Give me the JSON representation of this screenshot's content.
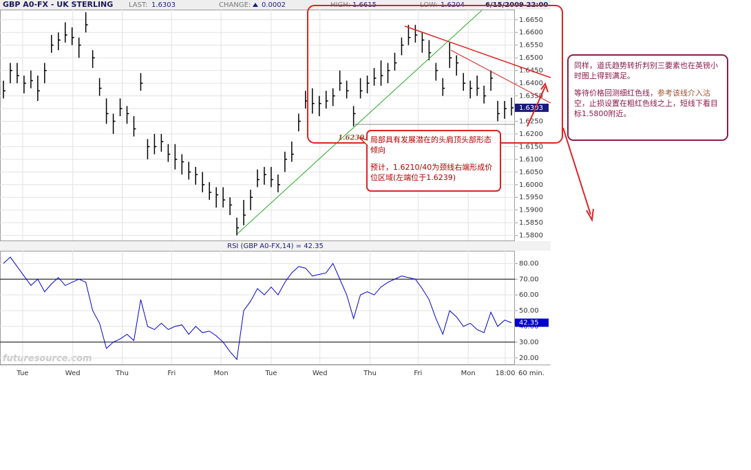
{
  "header": {
    "symbol": "GBP A0-FX - UK STERLING",
    "last_label": "LAST:",
    "last": "1.6303",
    "change_label": "CHANGE:",
    "change": "0.0002",
    "high_label": "HIGH:",
    "high": "1.6615",
    "low_label": "LOW:",
    "low": "1.6204",
    "datetime": "6/15/2009 22:00"
  },
  "chart_data": [
    {
      "type": "hlc",
      "color": "#000000",
      "box_color": "#1a1a7a",
      "grid": true,
      "high": [
        1.641,
        1.648,
        1.648,
        1.643,
        1.645,
        1.643,
        1.648,
        1.659,
        1.66,
        1.664,
        1.662,
        1.658,
        1.668,
        1.653,
        1.642,
        1.634,
        1.628,
        1.634,
        1.631,
        1.627,
        1.644,
        1.618,
        1.62,
        1.62,
        1.616,
        1.616,
        1.612,
        1.609,
        1.607,
        1.605,
        1.601,
        1.599,
        1.599,
        1.595,
        1.587,
        1.594,
        1.598,
        1.606,
        1.607,
        1.607,
        1.604,
        1.613,
        1.617,
        1.628,
        1.637,
        1.638,
        1.635,
        1.637,
        1.638,
        1.645,
        1.641,
        1.631,
        1.642,
        1.643,
        1.646,
        1.649,
        1.648,
        1.652,
        1.658,
        1.663,
        1.663,
        1.66,
        1.657,
        1.648,
        1.642,
        1.656,
        1.651,
        1.644,
        1.641,
        1.643,
        1.639,
        1.645,
        1.633,
        1.633,
        1.6343
      ],
      "low": [
        1.634,
        1.64,
        1.64,
        1.636,
        1.638,
        1.633,
        1.64,
        1.652,
        1.653,
        1.656,
        1.655,
        1.65,
        1.66,
        1.646,
        1.635,
        1.624,
        1.62,
        1.627,
        1.624,
        1.619,
        1.637,
        1.61,
        1.612,
        1.613,
        1.609,
        1.606,
        1.604,
        1.602,
        1.6,
        1.597,
        1.594,
        1.591,
        1.591,
        1.588,
        1.58,
        1.584,
        1.59,
        1.599,
        1.6,
        1.599,
        1.597,
        1.605,
        1.609,
        1.621,
        1.63,
        1.628,
        1.627,
        1.63,
        1.631,
        1.637,
        1.634,
        1.623,
        1.634,
        1.636,
        1.639,
        1.639,
        1.64,
        1.645,
        1.651,
        1.655,
        1.656,
        1.652,
        1.649,
        1.641,
        1.635,
        1.646,
        1.643,
        1.637,
        1.634,
        1.635,
        1.632,
        1.637,
        1.625,
        1.626,
        1.6273
      ],
      "close": [
        1.637,
        1.645,
        1.643,
        1.64,
        1.641,
        1.637,
        1.645,
        1.655,
        1.657,
        1.659,
        1.658,
        1.655,
        1.663,
        1.65,
        1.638,
        1.628,
        1.625,
        1.63,
        1.628,
        1.622,
        1.64,
        1.615,
        1.615,
        1.617,
        1.612,
        1.61,
        1.609,
        1.605,
        1.604,
        1.6,
        1.597,
        1.596,
        1.594,
        1.592,
        1.583,
        1.588,
        1.595,
        1.602,
        1.604,
        1.602,
        1.6,
        1.61,
        1.612,
        1.625,
        1.633,
        1.632,
        1.632,
        1.633,
        1.635,
        1.64,
        1.637,
        1.628,
        1.637,
        1.64,
        1.642,
        1.643,
        1.645,
        1.648,
        1.655,
        1.658,
        1.659,
        1.657,
        1.652,
        1.645,
        1.638,
        1.65,
        1.648,
        1.64,
        1.638,
        1.638,
        1.635,
        1.642,
        1.628,
        1.63,
        1.6303
      ],
      "xlim": [
        0,
        75
      ],
      "ylim": [
        1.578,
        1.669
      ],
      "yticks": [
        {
          "value": 1.58,
          "label": "1.5800"
        },
        {
          "value": 1.585,
          "label": "1.5850"
        },
        {
          "value": 1.59,
          "label": "1.5900"
        },
        {
          "value": 1.595,
          "label": "1.5950"
        },
        {
          "value": 1.6,
          "label": "1.6000"
        },
        {
          "value": 1.605,
          "label": "1.6050"
        },
        {
          "value": 1.61,
          "label": "1.6100"
        },
        {
          "value": 1.615,
          "label": "1.6150"
        },
        {
          "value": 1.62,
          "label": "1.6200"
        },
        {
          "value": 1.625,
          "label": "1.6250"
        },
        {
          "value": 1.63,
          "label": "1.6300"
        },
        {
          "value": 1.635,
          "label": "1.6350"
        },
        {
          "value": 1.64,
          "label": "1.6400"
        },
        {
          "value": 1.645,
          "label": "1.6450"
        },
        {
          "value": 1.65,
          "label": "1.6500"
        },
        {
          "value": 1.655,
          "label": "1.6550"
        },
        {
          "value": 1.66,
          "label": "1.6600"
        },
        {
          "value": 1.665,
          "label": "1.6650"
        }
      ]
    },
    {
      "type": "line",
      "title": "RSI (GBP A0-FX,14) = 42.35",
      "color": "#0000cc",
      "box_color": "#0000cc",
      "values": [
        80,
        84,
        78,
        72,
        66,
        70,
        62,
        67,
        71,
        66,
        68,
        70,
        68,
        50,
        42,
        26,
        30,
        32,
        35,
        31,
        57,
        40,
        38,
        42,
        38,
        40,
        41,
        35,
        40,
        36,
        37,
        34,
        30,
        24,
        19,
        50,
        56,
        64,
        60,
        65,
        60,
        68,
        74,
        78,
        77,
        72,
        73,
        74,
        80,
        70,
        60,
        45,
        60,
        62,
        60,
        65,
        68,
        70,
        72,
        71,
        70,
        64,
        57,
        45,
        35,
        50,
        46,
        40,
        42,
        38,
        36,
        49,
        40,
        44,
        42.35
      ],
      "xlim": [
        0,
        75
      ],
      "ylim": [
        16,
        88
      ],
      "levels": [
        30,
        70
      ],
      "yticks": [
        {
          "value": 20,
          "label": "20.00"
        },
        {
          "value": 30,
          "label": "30.00"
        },
        {
          "value": 40,
          "label": "40.00"
        },
        {
          "value": 50,
          "label": "50.00"
        },
        {
          "value": 60,
          "label": "60.00"
        },
        {
          "value": 70,
          "label": "70.00"
        },
        {
          "value": 80,
          "label": "80.00"
        }
      ],
      "xticks": [
        {
          "value": 3.3,
          "label": "Tue"
        },
        {
          "value": 10.6,
          "label": "Wed"
        },
        {
          "value": 17.8,
          "label": "Thu"
        },
        {
          "value": 25.0,
          "label": "Fri"
        },
        {
          "value": 32.2,
          "label": "Mon"
        },
        {
          "value": 39.5,
          "label": "Tue"
        },
        {
          "value": 46.6,
          "label": "Wed"
        },
        {
          "value": 53.9,
          "label": "Thu"
        },
        {
          "value": 60.9,
          "label": "Fri"
        },
        {
          "value": 68.2,
          "label": "Mon"
        },
        {
          "value": 73.6,
          "label": "18:00"
        }
      ],
      "xlabel": "60 min."
    }
  ],
  "annotations": {
    "level": "1.6239",
    "pattern_note": [
      "局部具有发展潜在的头肩顶头部形态倾向",
      "预计，1.6210/40为颈线右端形成价位区域(左端位于1.6239)"
    ],
    "side_note": [
      "同样，道氏趋势转折判别三要素也在英镑小时图上得到满足。",
      "等待价格回测细红色线，",
      "参考该线介入沽",
      "空，止损设置在粗红色线之上，短线下看目标1.5800附近。"
    ]
  },
  "watermark": "futuresource.com"
}
